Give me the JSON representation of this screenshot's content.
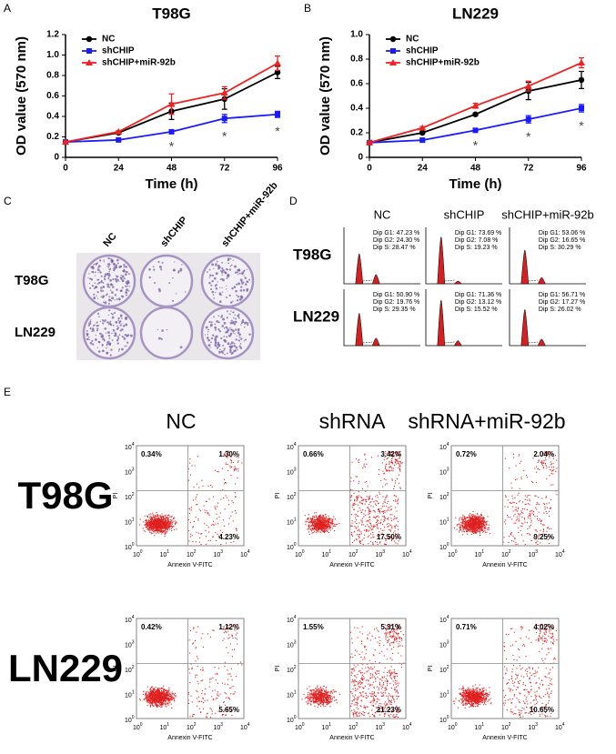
{
  "panel_letters": [
    "A",
    "B",
    "C",
    "D",
    "E"
  ],
  "chart_data": [
    {
      "type": "line",
      "title": "T98G",
      "x_label": "Time (h)",
      "y_label": "OD value (570 nm)",
      "x": [
        0,
        24,
        48,
        72,
        96
      ],
      "xlim": [
        0,
        96
      ],
      "xticks": [
        0,
        24,
        48,
        72,
        96
      ],
      "ylim": [
        0,
        1.2
      ],
      "yticks": [
        0,
        0.2,
        0.4,
        0.6,
        0.8,
        {
          "value": 1,
          "label": "1.0"
        },
        1.2
      ],
      "legend": "upper left",
      "series": [
        {
          "name": "NC",
          "color": "#000000",
          "marker": "circle",
          "values": [
            0.15,
            0.24,
            0.45,
            0.57,
            0.83
          ],
          "errors": [
            0.01,
            0.01,
            0.08,
            0.1,
            0.06
          ]
        },
        {
          "name": "shCHIP",
          "color": "#1a1aff",
          "marker": "square",
          "values": [
            0.15,
            0.17,
            0.25,
            0.38,
            0.42
          ],
          "errors": [
            0.01,
            0.01,
            0.01,
            0.04,
            0.03
          ]
        },
        {
          "name": "shCHIP+miR-92b",
          "color": "#ee2222",
          "marker": "triangle",
          "values": [
            0.15,
            0.25,
            0.52,
            0.63,
            0.92
          ],
          "errors": [
            0.01,
            0.01,
            0.1,
            0.06,
            0.07
          ]
        }
      ],
      "significance": {
        "text": "*",
        "x": [
          48,
          72,
          96
        ]
      }
    },
    {
      "type": "line",
      "title": "LN229",
      "x_label": "Time (h)",
      "y_label": "OD value (570 nm)",
      "x": [
        0,
        24,
        48,
        72,
        96
      ],
      "xlim": [
        0,
        96
      ],
      "xticks": [
        0,
        24,
        48,
        72,
        96
      ],
      "ylim": [
        0,
        1
      ],
      "yticks": [
        0,
        0.2,
        0.4,
        0.6,
        0.8,
        {
          "value": 1,
          "label": "1.0"
        }
      ],
      "legend": "upper left",
      "series": [
        {
          "name": "NC",
          "color": "#000000",
          "marker": "circle",
          "values": [
            0.12,
            0.2,
            0.35,
            0.54,
            0.63
          ],
          "errors": [
            0.01,
            0.01,
            0.01,
            0.07,
            0.07
          ]
        },
        {
          "name": "shCHIP",
          "color": "#1a1aff",
          "marker": "square",
          "values": [
            0.12,
            0.14,
            0.22,
            0.31,
            0.4
          ],
          "errors": [
            0.01,
            0.01,
            0.01,
            0.03,
            0.03
          ]
        },
        {
          "name": "shCHIP+miR-92b",
          "color": "#ee2222",
          "marker": "triangle",
          "values": [
            0.12,
            0.24,
            0.42,
            0.58,
            0.77
          ],
          "errors": [
            0.01,
            0.01,
            0.02,
            0.04,
            0.04
          ]
        }
      ],
      "significance": {
        "text": "*",
        "x": [
          48,
          72,
          96
        ]
      }
    }
  ],
  "colony_assay": {
    "columns": [
      "NC",
      "shCHIP",
      "shCHIP+miR-92b"
    ],
    "rows": [
      "T98G",
      "LN229"
    ]
  },
  "cell_cycle": {
    "columns": [
      "NC",
      "shCHIP",
      "shCHIP+miR-92b"
    ],
    "rows": [
      {
        "label": "T98G",
        "cells": [
          [
            "Dip G1: 47.23 %",
            "Dip G2: 24.30 %",
            "Dip S: 28.47 %"
          ],
          [
            "Dip G1: 73.69 %",
            "Dip G2: 7.08 %",
            "Dip S: 19.23 %"
          ],
          [
            "Dip G1: 53.06 %",
            "Dip G2: 16.65 %",
            "Dip S: 30.29 %"
          ]
        ]
      },
      {
        "label": "LN229",
        "cells": [
          [
            "Dip G1: 50.90 %",
            "Dip G2: 19.76 %",
            "Dip S: 29.35 %"
          ],
          [
            "Dip G1: 71.36 %",
            "Dip G2: 13.12 %",
            "Dip S: 15.52 %"
          ],
          [
            "Dip G1: 56.71 %",
            "Dip G2: 17.27 %",
            "Dip S: 26.02 %"
          ]
        ]
      }
    ]
  },
  "apoptosis": {
    "columns": [
      "NC",
      "shRNA",
      "shRNA+miR-92b"
    ],
    "y_axis_label": "PI",
    "x_axis_label": "Annexin V-FITC",
    "tick_base": "10",
    "tick_exponents": [
      "0",
      "1",
      "2",
      "3",
      "4"
    ],
    "rows": [
      {
        "label": "T98G",
        "cells": [
          {
            "upper_left": "0.34%",
            "upper_right": "1.30%",
            "lower_right": "4.23%"
          },
          {
            "upper_left": "0.66%",
            "upper_right": "3.42%",
            "lower_right": "17.50%"
          },
          {
            "upper_left": "0.72%",
            "upper_right": "2.04%",
            "lower_right": "9.25%"
          }
        ]
      },
      {
        "label": "LN229",
        "cells": [
          {
            "upper_left": "0.42%",
            "upper_right": "1.12%",
            "lower_right": "5.65%"
          },
          {
            "upper_left": "1.55%",
            "upper_right": "5.31%",
            "lower_right": "21.23%"
          },
          {
            "upper_left": "0.71%",
            "upper_right": "4.02%",
            "lower_right": "10.65%"
          }
        ]
      }
    ]
  }
}
